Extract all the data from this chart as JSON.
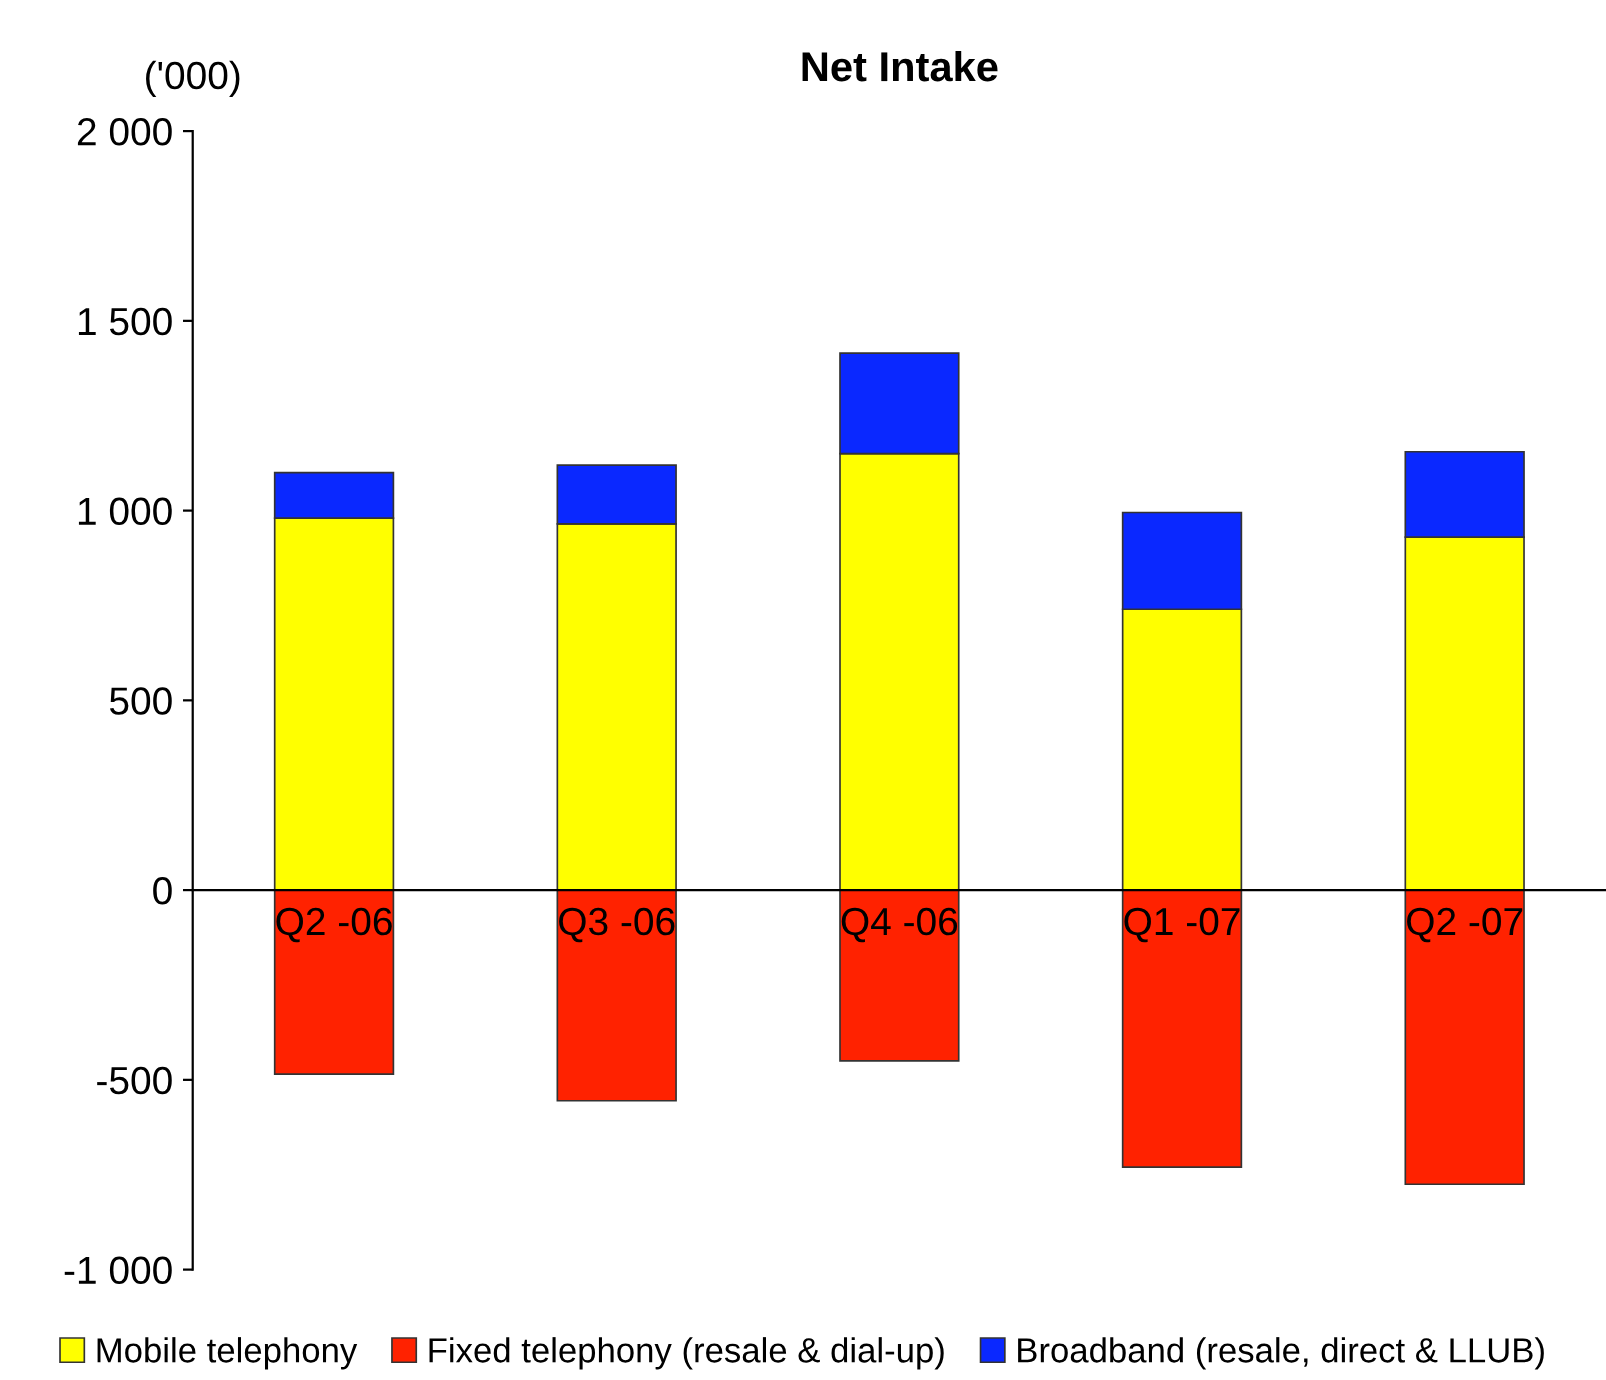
{
  "chart_data": {
    "type": "bar",
    "title": "Net Intake",
    "ylabel": "('000)",
    "stacked": true,
    "categories": [
      "Q2 -06",
      "Q3 -06",
      "Q4 -06",
      "Q1 -07",
      "Q2 -07"
    ],
    "series": [
      {
        "name": "Mobile telephony",
        "color": "#ffff00",
        "values": [
          980,
          965,
          1150,
          740,
          930
        ]
      },
      {
        "name": "Fixed telephony (resale & dial-up)",
        "color": "#ff2200",
        "values": [
          -485,
          -555,
          -450,
          -730,
          -775
        ]
      },
      {
        "name": "Broadband (resale, direct & LLUB)",
        "color": "#0a28ff",
        "values": [
          120,
          155,
          265,
          255,
          225
        ]
      }
    ],
    "ylim": [
      -1000,
      2000
    ],
    "yticks": [
      {
        "value": -1000,
        "label": "-1 000"
      },
      -500,
      0,
      500,
      {
        "value": 1000,
        "label": "1 000"
      },
      {
        "value": 1500,
        "label": "1 500"
      },
      {
        "value": 2000,
        "label": "2 000"
      }
    ],
    "grid": false,
    "legend": "bottom"
  }
}
